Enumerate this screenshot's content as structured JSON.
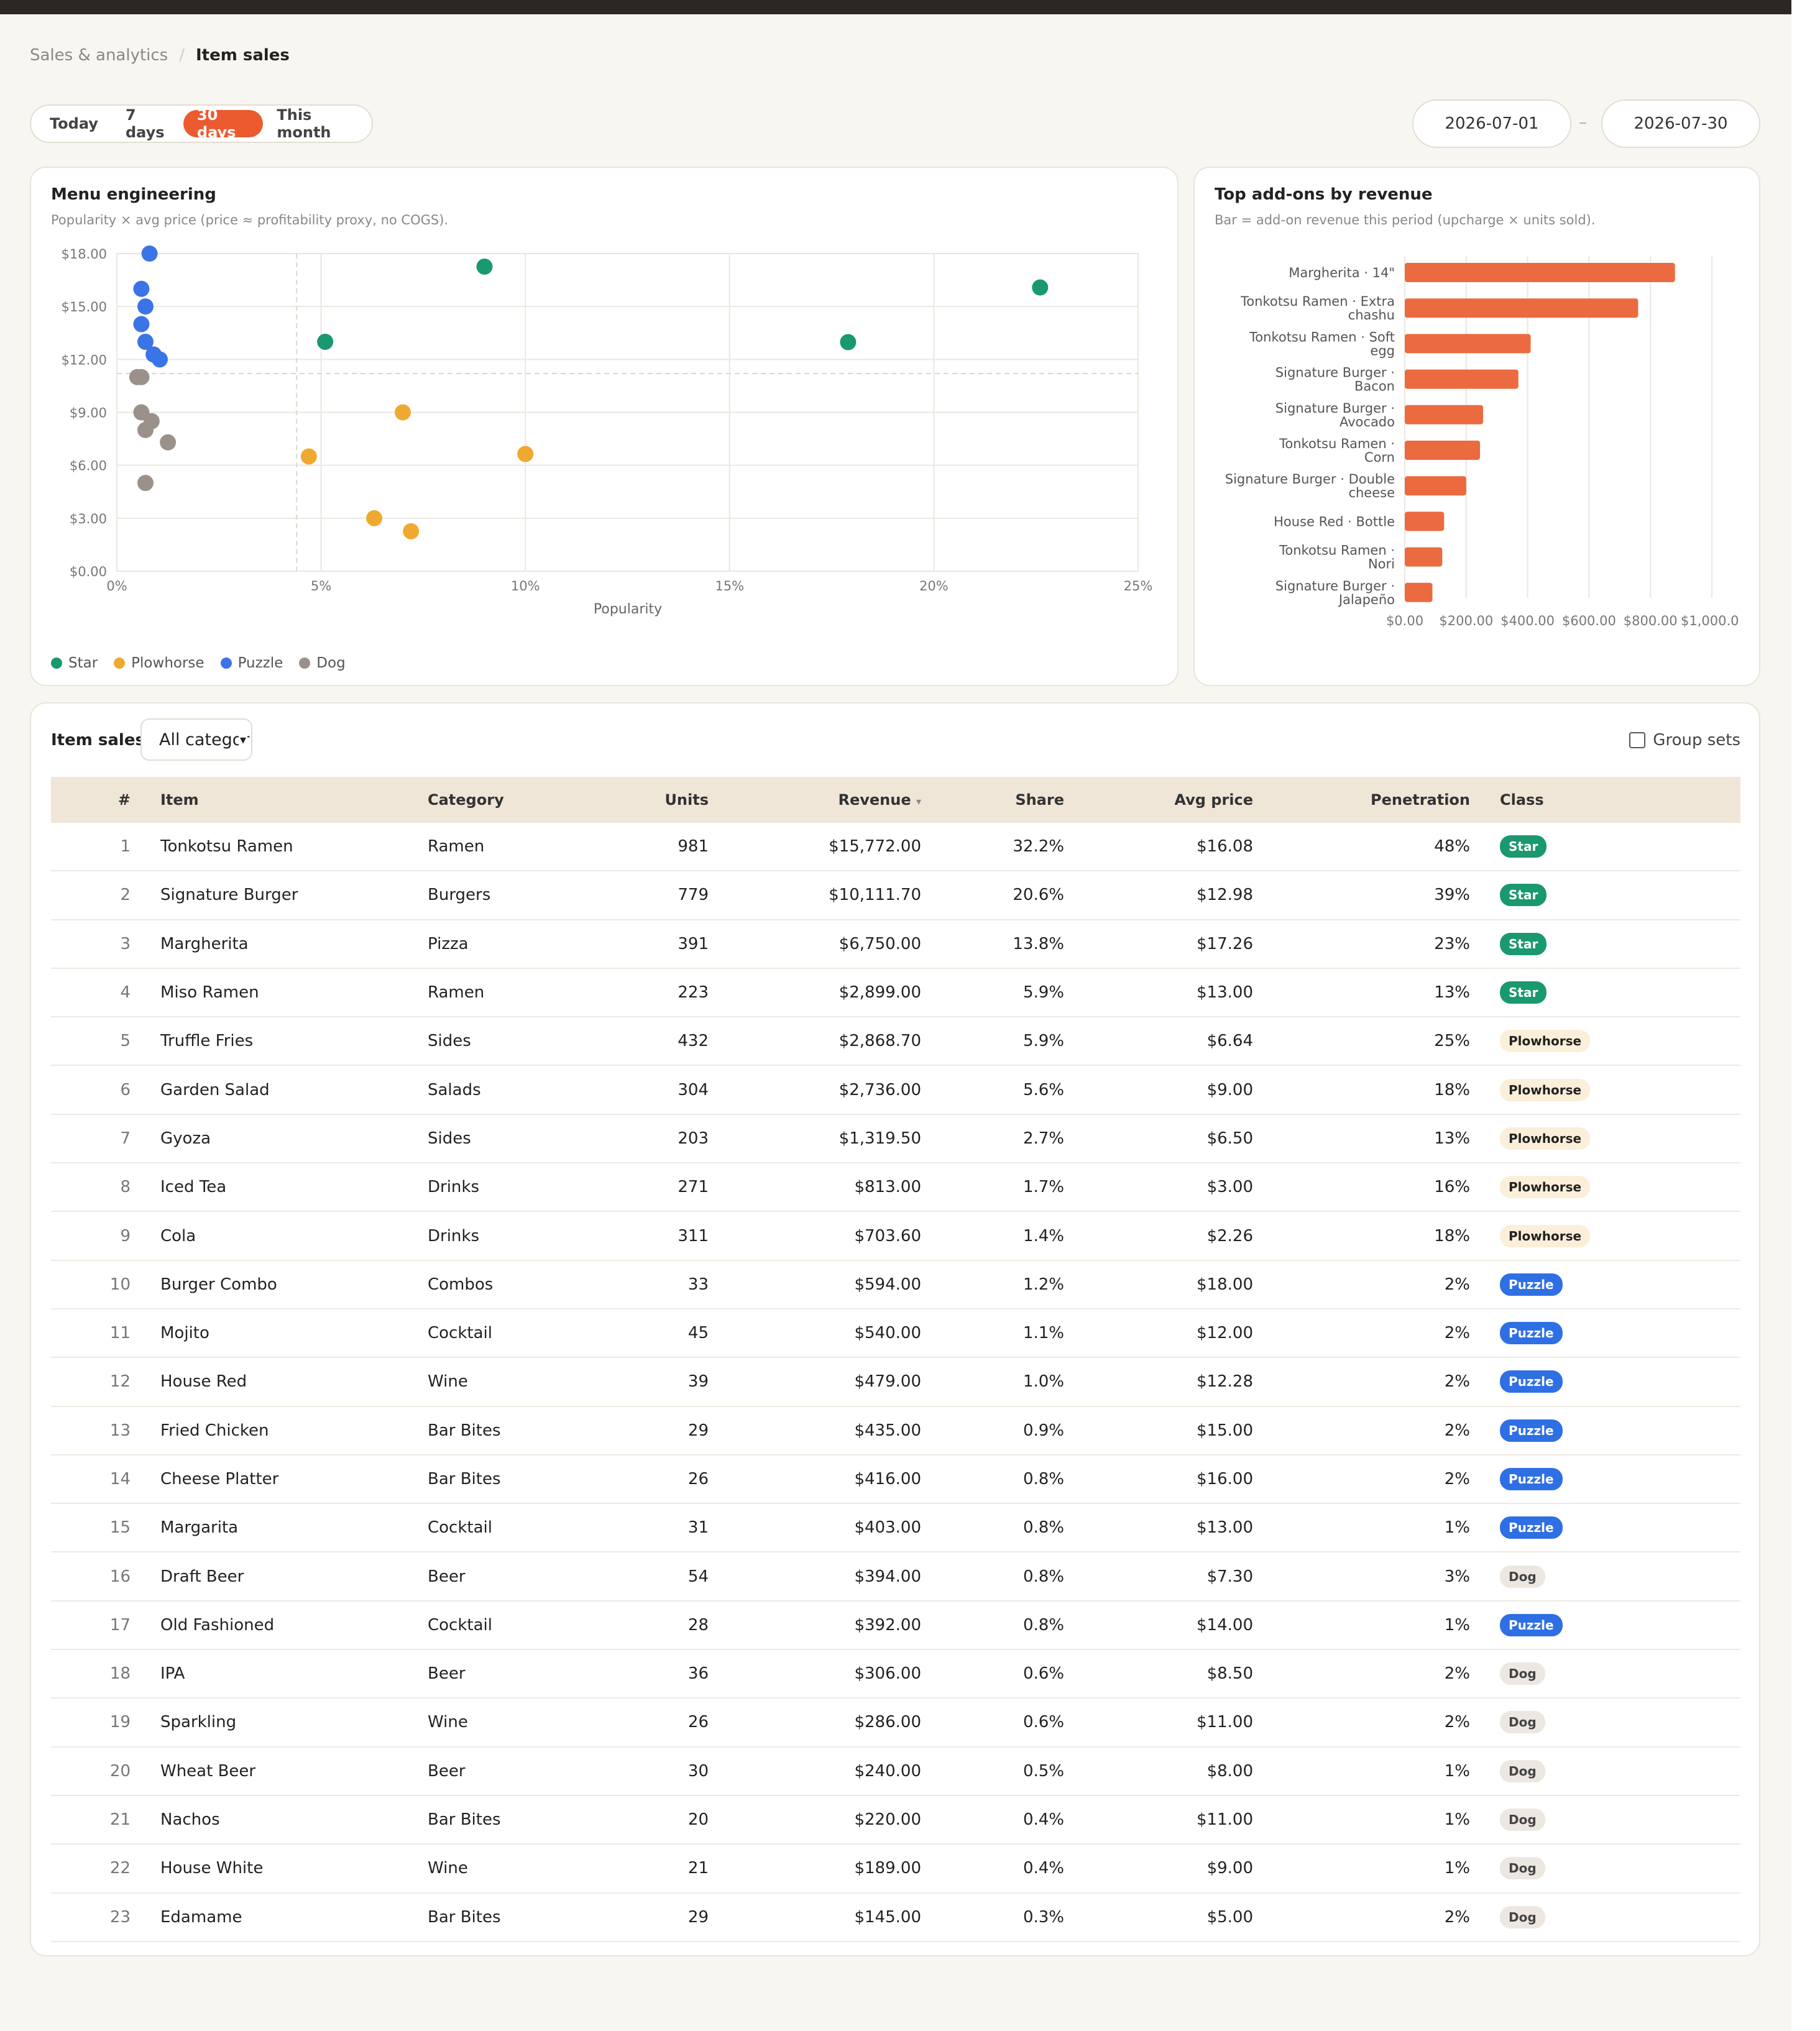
{
  "breadcrumb": {
    "parent": "Sales & analytics",
    "separator": "/",
    "current": "Item sales"
  },
  "range": {
    "options": [
      "Today",
      "7 days",
      "30 days",
      "This month"
    ],
    "active": "30 days"
  },
  "dates": {
    "start": "2026-07-01",
    "separator": "–",
    "end": "2026-07-30"
  },
  "menu_engineering": {
    "title": "Menu engineering",
    "subtitle": "Popularity × avg price (price ≈ profitability proxy, no COGS).",
    "legend": [
      "Star",
      "Plowhorse",
      "Puzzle",
      "Dog"
    ],
    "colors": {
      "Star": "#1a9870",
      "Plowhorse": "#f0a930",
      "Puzzle": "#3b74e6",
      "Dog": "#9b918a"
    }
  },
  "addons": {
    "title": "Top add-ons by revenue",
    "subtitle": "Bar = add-on revenue this period (upcharge × units sold).",
    "bar_color": "#ec6a3f"
  },
  "chart_data": [
    {
      "type": "scatter",
      "title": "Menu engineering",
      "xlabel": "Popularity",
      "ylabel": "",
      "xlim": [
        0,
        25
      ],
      "ylim": [
        0,
        18
      ],
      "x_ticks": [
        "0%",
        "5%",
        "10%",
        "15%",
        "20%",
        "25%"
      ],
      "y_ticks": [
        "$0.00",
        "$3.00",
        "$6.00",
        "$9.00",
        "$12.00",
        "$15.00",
        "$18.00"
      ],
      "grid": true,
      "legend_position": "bottom-left",
      "series": [
        {
          "name": "Star",
          "points": [
            [
              22.6,
              16.08
            ],
            [
              17.9,
              12.98
            ],
            [
              9.0,
              17.26
            ],
            [
              5.1,
              13.0
            ]
          ]
        },
        {
          "name": "Plowhorse",
          "points": [
            [
              10.0,
              6.64
            ],
            [
              7.0,
              9.0
            ],
            [
              4.7,
              6.5
            ],
            [
              6.3,
              3.0
            ],
            [
              7.2,
              2.26
            ]
          ]
        },
        {
          "name": "Puzzle",
          "points": [
            [
              0.8,
              18.0
            ],
            [
              0.6,
              16.0
            ],
            [
              0.7,
              15.0
            ],
            [
              0.6,
              14.0
            ],
            [
              0.7,
              13.0
            ],
            [
              0.9,
              12.28
            ],
            [
              1.05,
              12.0
            ]
          ]
        },
        {
          "name": "Dog",
          "points": [
            [
              0.5,
              11.0
            ],
            [
              0.6,
              11.0
            ],
            [
              0.6,
              9.0
            ],
            [
              0.85,
              8.5
            ],
            [
              0.7,
              8.0
            ],
            [
              1.25,
              7.3
            ],
            [
              0.7,
              5.0
            ]
          ]
        }
      ]
    },
    {
      "type": "bar",
      "orientation": "horizontal",
      "title": "Top add-ons by revenue",
      "categories": [
        "Margherita · 14\"",
        "Tonkotsu Ramen · Extra chashu",
        "Tonkotsu Ramen · Soft egg",
        "Signature Burger · Bacon",
        "Signature Burger · Avocado",
        "Tonkotsu Ramen · Corn",
        "Signature Burger · Double cheese",
        "House Red · Bottle",
        "Tonkotsu Ramen · Nori",
        "Signature Burger · Jalapeño"
      ],
      "values": [
        880,
        760,
        410,
        370,
        255,
        245,
        200,
        128,
        122,
        90
      ],
      "xlim": [
        0,
        1000
      ],
      "x_ticks": [
        "$0.00",
        "$200.00",
        "$400.00",
        "$600.00",
        "$800.00",
        "$1,000.0"
      ]
    }
  ],
  "table": {
    "title": "Item sales",
    "filter_value": "All categories",
    "group_sets_label": "Group sets",
    "sort_indicator": "▾",
    "headers": {
      "n": "#",
      "item": "Item",
      "category": "Category",
      "units": "Units",
      "revenue": "Revenue",
      "share": "Share",
      "avg": "Avg price",
      "pen": "Penetration",
      "class": "Class"
    },
    "rows": [
      [
        "1",
        "Tonkotsu Ramen",
        "Ramen",
        "981",
        "$15,772.00",
        "32.2%",
        "$16.08",
        "48%",
        "Star"
      ],
      [
        "2",
        "Signature Burger",
        "Burgers",
        "779",
        "$10,111.70",
        "20.6%",
        "$12.98",
        "39%",
        "Star"
      ],
      [
        "3",
        "Margherita",
        "Pizza",
        "391",
        "$6,750.00",
        "13.8%",
        "$17.26",
        "23%",
        "Star"
      ],
      [
        "4",
        "Miso Ramen",
        "Ramen",
        "223",
        "$2,899.00",
        "5.9%",
        "$13.00",
        "13%",
        "Star"
      ],
      [
        "5",
        "Truffle Fries",
        "Sides",
        "432",
        "$2,868.70",
        "5.9%",
        "$6.64",
        "25%",
        "Plowhorse"
      ],
      [
        "6",
        "Garden Salad",
        "Salads",
        "304",
        "$2,736.00",
        "5.6%",
        "$9.00",
        "18%",
        "Plowhorse"
      ],
      [
        "7",
        "Gyoza",
        "Sides",
        "203",
        "$1,319.50",
        "2.7%",
        "$6.50",
        "13%",
        "Plowhorse"
      ],
      [
        "8",
        "Iced Tea",
        "Drinks",
        "271",
        "$813.00",
        "1.7%",
        "$3.00",
        "16%",
        "Plowhorse"
      ],
      [
        "9",
        "Cola",
        "Drinks",
        "311",
        "$703.60",
        "1.4%",
        "$2.26",
        "18%",
        "Plowhorse"
      ],
      [
        "10",
        "Burger Combo",
        "Combos",
        "33",
        "$594.00",
        "1.2%",
        "$18.00",
        "2%",
        "Puzzle"
      ],
      [
        "11",
        "Mojito",
        "Cocktail",
        "45",
        "$540.00",
        "1.1%",
        "$12.00",
        "2%",
        "Puzzle"
      ],
      [
        "12",
        "House Red",
        "Wine",
        "39",
        "$479.00",
        "1.0%",
        "$12.28",
        "2%",
        "Puzzle"
      ],
      [
        "13",
        "Fried Chicken",
        "Bar Bites",
        "29",
        "$435.00",
        "0.9%",
        "$15.00",
        "2%",
        "Puzzle"
      ],
      [
        "14",
        "Cheese Platter",
        "Bar Bites",
        "26",
        "$416.00",
        "0.8%",
        "$16.00",
        "2%",
        "Puzzle"
      ],
      [
        "15",
        "Margarita",
        "Cocktail",
        "31",
        "$403.00",
        "0.8%",
        "$13.00",
        "1%",
        "Puzzle"
      ],
      [
        "16",
        "Draft Beer",
        "Beer",
        "54",
        "$394.00",
        "0.8%",
        "$7.30",
        "3%",
        "Dog"
      ],
      [
        "17",
        "Old Fashioned",
        "Cocktail",
        "28",
        "$392.00",
        "0.8%",
        "$14.00",
        "1%",
        "Puzzle"
      ],
      [
        "18",
        "IPA",
        "Beer",
        "36",
        "$306.00",
        "0.6%",
        "$8.50",
        "2%",
        "Dog"
      ],
      [
        "19",
        "Sparkling",
        "Wine",
        "26",
        "$286.00",
        "0.6%",
        "$11.00",
        "2%",
        "Dog"
      ],
      [
        "20",
        "Wheat Beer",
        "Beer",
        "30",
        "$240.00",
        "0.5%",
        "$8.00",
        "1%",
        "Dog"
      ],
      [
        "21",
        "Nachos",
        "Bar Bites",
        "20",
        "$220.00",
        "0.4%",
        "$11.00",
        "1%",
        "Dog"
      ],
      [
        "22",
        "House White",
        "Wine",
        "21",
        "$189.00",
        "0.4%",
        "$9.00",
        "1%",
        "Dog"
      ],
      [
        "23",
        "Edamame",
        "Bar Bites",
        "29",
        "$145.00",
        "0.3%",
        "$5.00",
        "2%",
        "Dog"
      ]
    ]
  }
}
